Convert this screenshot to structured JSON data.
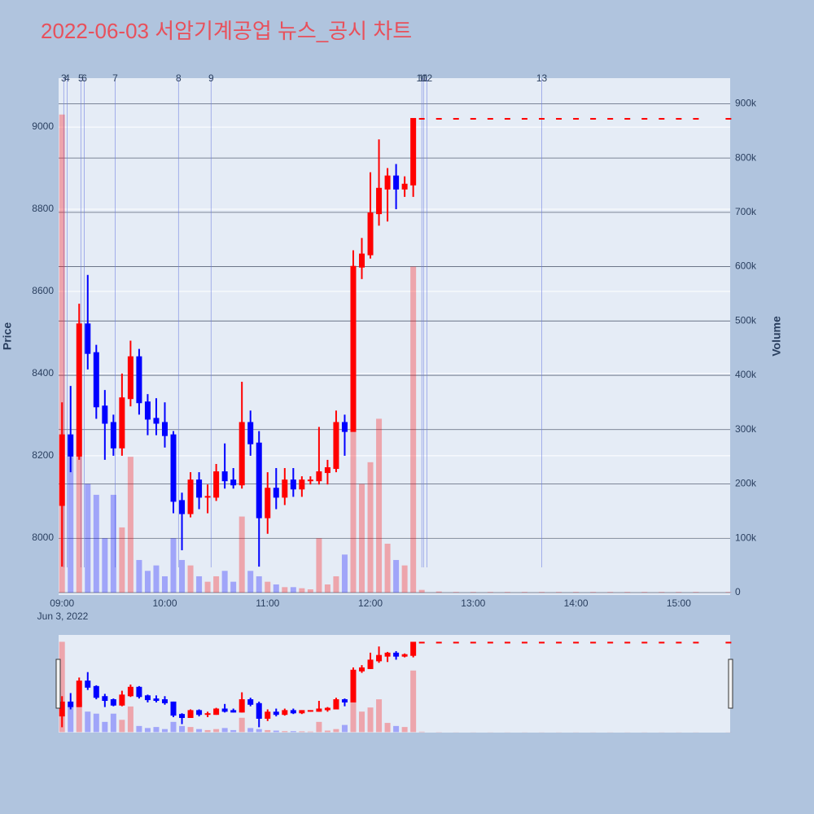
{
  "chart_data": {
    "type": "candlestick",
    "title": "2022-06-03 서암기계공업 뉴스_공시 차트",
    "y_label": "Price",
    "y2_label": "Volume",
    "x_date_label": "Jun 3, 2022",
    "increasing_color": "#ff0000",
    "decreasing_color": "#0000ff",
    "x": [
      "09:00",
      "09:05",
      "09:10",
      "09:15",
      "09:20",
      "09:25",
      "09:30",
      "09:35",
      "09:40",
      "09:45",
      "09:50",
      "09:55",
      "10:00",
      "10:05",
      "10:10",
      "10:15",
      "10:20",
      "10:25",
      "10:30",
      "10:35",
      "10:40",
      "10:45",
      "10:50",
      "10:55",
      "11:00",
      "11:05",
      "11:10",
      "11:15",
      "11:20",
      "11:25",
      "11:30",
      "11:35",
      "11:40",
      "11:45",
      "11:50",
      "11:55",
      "12:00",
      "12:05",
      "12:10",
      "12:15",
      "12:20",
      "12:25",
      "12:30",
      "12:40",
      "12:50",
      "13:00",
      "13:10",
      "13:20",
      "13:30",
      "13:40",
      "13:50",
      "14:00",
      "14:10",
      "14:20",
      "14:30",
      "14:40",
      "14:50",
      "15:00",
      "15:10",
      "15:29"
    ],
    "open": [
      8080,
      8250,
      8200,
      8520,
      8450,
      8320,
      8280,
      8220,
      8340,
      8440,
      8330,
      8290,
      8280,
      8250,
      8090,
      8060,
      8140,
      8100,
      8100,
      8160,
      8140,
      8130,
      8280,
      8230,
      8050,
      8120,
      8100,
      8140,
      8120,
      8140,
      8140,
      8160,
      8170,
      8280,
      8260,
      8660,
      8690,
      8790,
      8850,
      8880,
      8850,
      8860,
      9020,
      9020,
      9020,
      9020,
      9020,
      9020,
      9020,
      9020,
      9020,
      9020,
      9020,
      9020,
      9020,
      9020,
      9020,
      9020,
      9020,
      9020
    ],
    "high": [
      8330,
      8370,
      8570,
      8640,
      8470,
      8360,
      8300,
      8400,
      8480,
      8460,
      8350,
      8340,
      8330,
      8260,
      8110,
      8160,
      8160,
      8130,
      8180,
      8230,
      8170,
      8380,
      8310,
      8260,
      8160,
      8170,
      8170,
      8170,
      8150,
      8150,
      8270,
      8190,
      8310,
      8300,
      8700,
      8730,
      8890,
      8970,
      8900,
      8910,
      8880,
      9020,
      9020,
      9020,
      9020,
      9020,
      9020,
      9020,
      9020,
      9020,
      9020,
      9020,
      9020,
      9020,
      9020,
      9020,
      9020,
      9020,
      9020,
      9020
    ],
    "low": [
      7930,
      8160,
      8190,
      8410,
      8290,
      8190,
      8200,
      8200,
      8320,
      8300,
      8250,
      8250,
      8220,
      8060,
      7970,
      8050,
      8070,
      8060,
      8090,
      8120,
      8120,
      8120,
      8200,
      7930,
      8010,
      8070,
      8080,
      8100,
      8100,
      8130,
      8130,
      8130,
      8160,
      8200,
      8260,
      8630,
      8680,
      8760,
      8770,
      8800,
      8830,
      8830,
      9020,
      9020,
      9020,
      9020,
      9020,
      9020,
      9020,
      9020,
      9020,
      9020,
      9020,
      9020,
      9020,
      9020,
      9020,
      9020,
      9020,
      9020
    ],
    "close": [
      8250,
      8200,
      8520,
      8450,
      8320,
      8280,
      8220,
      8340,
      8440,
      8330,
      8290,
      8280,
      8250,
      8090,
      8060,
      8140,
      8100,
      8100,
      8160,
      8140,
      8130,
      8280,
      8230,
      8050,
      8120,
      8100,
      8140,
      8120,
      8140,
      8140,
      8160,
      8170,
      8280,
      8260,
      8660,
      8690,
      8790,
      8850,
      8880,
      8850,
      8860,
      9020,
      9020,
      9020,
      9020,
      9020,
      9020,
      9020,
      9020,
      9020,
      9020,
      9020,
      9020,
      9020,
      9020,
      9020,
      9020,
      9020,
      9020,
      9020
    ],
    "volume": [
      880000,
      250000,
      300000,
      200000,
      180000,
      100000,
      180000,
      120000,
      250000,
      60000,
      40000,
      50000,
      30000,
      100000,
      60000,
      50000,
      30000,
      20000,
      30000,
      40000,
      20000,
      140000,
      40000,
      30000,
      20000,
      15000,
      10000,
      10000,
      8000,
      6000,
      100000,
      15000,
      30000,
      70000,
      330000,
      200000,
      240000,
      320000,
      90000,
      60000,
      50000,
      600000,
      5000,
      2000,
      1000,
      1000,
      1000,
      1000,
      1000,
      1000,
      1000,
      1000,
      1000,
      1000,
      1000,
      1000,
      1000,
      1000,
      1000,
      1000
    ],
    "xlim": [
      "08:58",
      "15:30"
    ],
    "xticks": [
      "09:00",
      "10:00",
      "11:00",
      "12:00",
      "13:00",
      "14:00",
      "15:00"
    ],
    "ylim": [
      7861,
      9119
    ],
    "yticks": [
      8000,
      8200,
      8400,
      8600,
      8800,
      9000
    ],
    "y2lim": [
      -4500,
      947000
    ],
    "y2ticks": [
      0,
      {
        "value": 100000,
        "label": "100k"
      },
      {
        "value": 200000,
        "label": "200k"
      },
      {
        "value": 300000,
        "label": "300k"
      },
      {
        "value": 400000,
        "label": "400k"
      },
      {
        "value": 500000,
        "label": "500k"
      },
      {
        "value": 600000,
        "label": "600k"
      },
      {
        "value": 700000,
        "label": "700k"
      },
      {
        "value": 800000,
        "label": "800k"
      },
      {
        "value": 900000,
        "label": "900k"
      }
    ],
    "annotations": [
      {
        "label": "3",
        "x": "09:01"
      },
      {
        "label": "4",
        "x": "09:03"
      },
      {
        "label": "5",
        "x": "09:11"
      },
      {
        "label": "6",
        "x": "09:13"
      },
      {
        "label": "7",
        "x": "09:31"
      },
      {
        "label": "8",
        "x": "10:08"
      },
      {
        "label": "9",
        "x": "10:27"
      },
      {
        "label": "10",
        "x": "12:30"
      },
      {
        "label": "11",
        "x": "12:31"
      },
      {
        "label": "12",
        "x": "12:33"
      },
      {
        "label": "13",
        "x": "13:40"
      }
    ],
    "rangeslider": true
  }
}
